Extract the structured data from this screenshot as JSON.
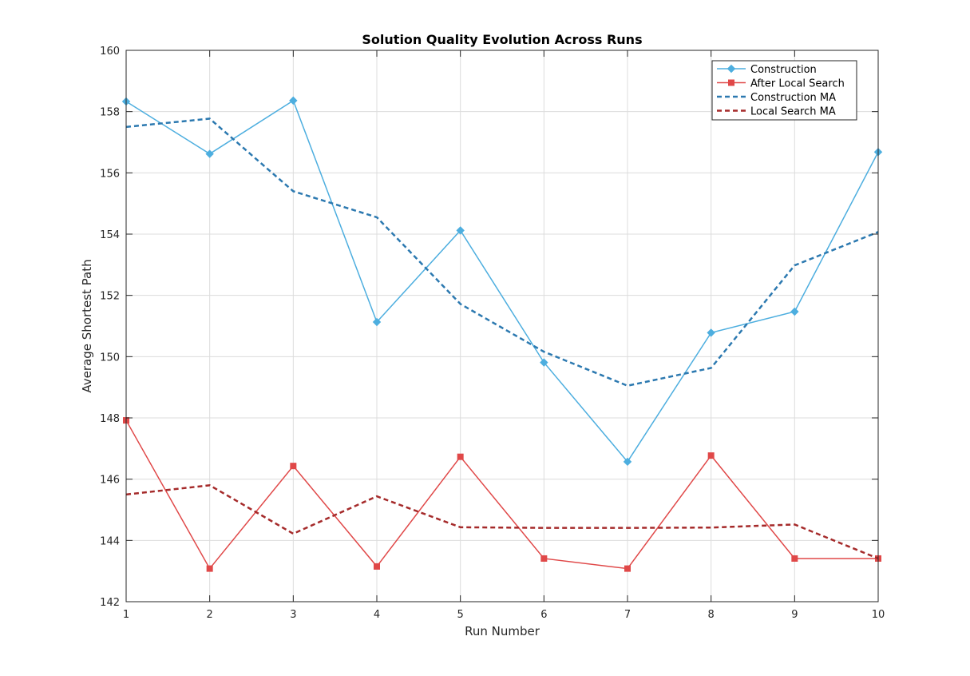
{
  "chart_data": {
    "type": "line",
    "title": "Solution Quality Evolution Across Runs",
    "xlabel": "Run Number",
    "ylabel": "Average Shortest Path",
    "xlim": [
      1,
      10
    ],
    "ylim": [
      142,
      160
    ],
    "xticks": [
      1,
      2,
      3,
      4,
      5,
      6,
      7,
      8,
      9,
      10
    ],
    "yticks": [
      142,
      144,
      146,
      148,
      150,
      152,
      154,
      156,
      158,
      160
    ],
    "grid": true,
    "legend_position": "top-right",
    "x": [
      1,
      2,
      3,
      4,
      5,
      6,
      7,
      8,
      9,
      10
    ],
    "series": [
      {
        "name": "Construction",
        "color": "#4DAEDF",
        "style": "solid",
        "marker": "diamond",
        "values": [
          158.33,
          156.62,
          158.36,
          151.13,
          154.12,
          149.81,
          146.57,
          150.78,
          151.47,
          156.68
        ]
      },
      {
        "name": "After Local Search",
        "color": "#E04848",
        "style": "solid",
        "marker": "square",
        "values": [
          147.92,
          143.08,
          146.43,
          143.15,
          146.73,
          143.41,
          143.08,
          146.77,
          143.41,
          143.41
        ]
      },
      {
        "name": "Construction MA",
        "color": "#2C79B0",
        "style": "dashed",
        "marker": "none",
        "values": [
          157.5,
          157.77,
          155.4,
          154.55,
          151.72,
          150.16,
          149.05,
          149.63,
          152.98,
          154.07
        ]
      },
      {
        "name": "Local Search MA",
        "color": "#A52A2A",
        "style": "dashed",
        "marker": "none",
        "values": [
          145.5,
          145.8,
          144.22,
          145.44,
          144.43,
          144.41,
          144.41,
          144.42,
          144.52,
          143.41
        ]
      }
    ]
  }
}
